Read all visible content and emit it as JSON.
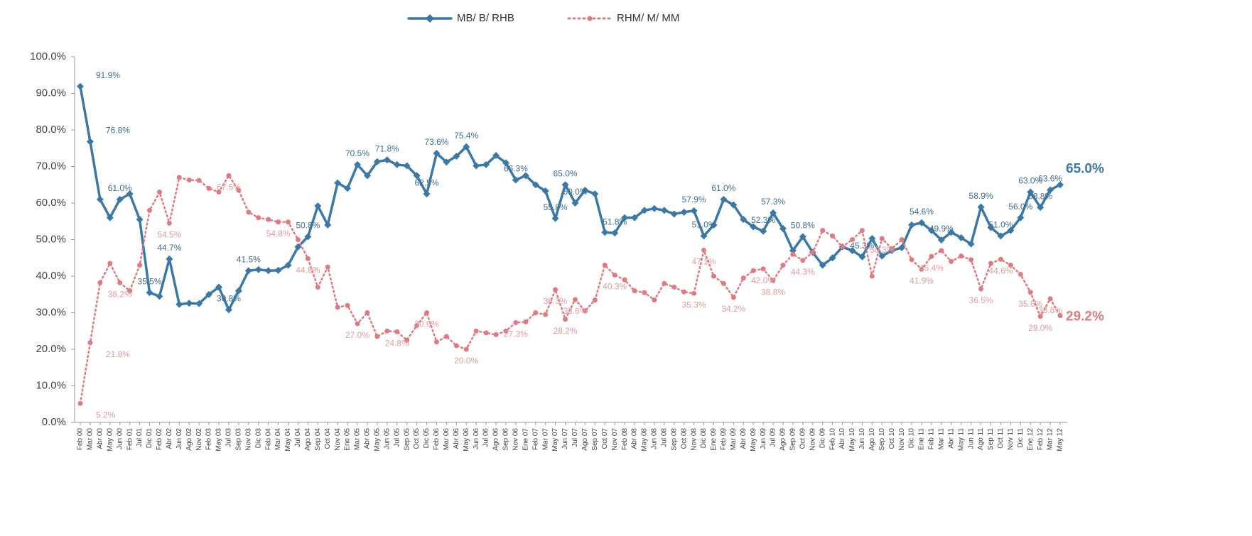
{
  "chart_data": {
    "type": "line",
    "legend": "top",
    "categories": [
      "Feb 00",
      "Mar 00",
      "Abr 00",
      "May 00",
      "Jun 00",
      "Feb 01",
      "Jul 01",
      "Dic 01",
      "Feb 02",
      "Abr 02",
      "Jun 02",
      "Ago 02",
      "Nov 02",
      "Feb 03",
      "May 03",
      "Jul 03",
      "Sep 03",
      "Nov 03",
      "Dic 03",
      "Feb 04",
      "Mar 04",
      "May 04",
      "Jul 04",
      "Ago 04",
      "Sep 04",
      "Oct 04",
      "Nov 04",
      "Ene 05",
      "Mar 05",
      "Abr 05",
      "May 05",
      "Jun 05",
      "Jul 05",
      "Sep 05",
      "Oct 05",
      "Dic 05",
      "Feb 06",
      "Mar 06",
      "Abr 06",
      "May 06",
      "Jun 06",
      "Jul 06",
      "Ago 06",
      "Sep 06",
      "Nov 06",
      "Ene 07",
      "Feb 07",
      "Mar 07",
      "May 07",
      "Jun 07",
      "Jul 07",
      "Ago 07",
      "Sep 07",
      "Oct 07",
      "Nov 07",
      "Feb 08",
      "Abr 08",
      "May 08",
      "Jun 08",
      "Jul 08",
      "Sep 08",
      "Oct 08",
      "Nov 08",
      "Dic 08",
      "Ene 09",
      "Feb 09",
      "Mar 09",
      "Abr 09",
      "May 09",
      "Jun 09",
      "Jul 09",
      "Ago 09",
      "Sep 09",
      "Oct 09",
      "Nov 09",
      "Dic 09",
      "Feb 10",
      "Abr 10",
      "May 10",
      "Jun 10",
      "Ago 10",
      "Sep 10",
      "Oct 10",
      "Nov 10",
      "Dic 10",
      "Ene 11",
      "Feb 11",
      "Mar 11",
      "Abr 11",
      "May 11",
      "Jun 11",
      "Ago 11",
      "Sep 11",
      "Oct 11",
      "Nov 11",
      "Dic 11",
      "Ene 12",
      "Feb 12",
      "Mar 12",
      "May 12"
    ],
    "series": [
      {
        "name": "MB/ B/ RHB",
        "color": "#3a78a8",
        "marker": "diamond",
        "dash": "solid",
        "values": [
          91.9,
          76.8,
          61.0,
          56.0,
          61.0,
          62.5,
          55.5,
          35.5,
          34.5,
          44.7,
          32.3,
          32.6,
          32.5,
          35,
          37,
          30.8,
          36,
          41.5,
          41.8,
          41.5,
          41.6,
          43,
          48,
          50.8,
          59.2,
          54,
          65.5,
          64,
          70.5,
          67.5,
          71.3,
          71.8,
          70.5,
          70.2,
          67.5,
          62.5,
          73.6,
          71.2,
          72.8,
          75.4,
          70.2,
          70.5,
          73,
          71,
          66.3,
          67.5,
          65,
          63.3,
          55.8,
          65.0,
          60.0,
          63.5,
          62.5,
          52,
          51.8,
          56,
          56,
          58,
          58.5,
          58,
          57,
          57.5,
          57.9,
          51.0,
          54,
          61.0,
          59.5,
          55.5,
          53.5,
          52.3,
          57.3,
          53,
          47,
          50.8,
          46.5,
          43,
          45,
          48,
          47,
          45.3,
          50.3,
          45.5,
          47,
          47.8,
          54,
          54.6,
          52.5,
          49.9,
          52,
          50.5,
          48.8,
          58.9,
          53.3,
          51.0,
          52.5,
          56.0,
          63.0,
          58.8,
          63.6,
          65.0
        ],
        "value_labels": [
          "91.9%",
          "76.8%",
          null,
          null,
          "61.0%",
          null,
          null,
          "35.5%",
          null,
          "44.7%",
          null,
          null,
          null,
          null,
          null,
          "30.8%",
          null,
          "41.5%",
          null,
          null,
          null,
          null,
          null,
          "50.8%",
          null,
          null,
          null,
          null,
          "70.5%",
          null,
          null,
          "71.8%",
          null,
          null,
          null,
          "62.5%",
          "73.6%",
          null,
          null,
          "75.4%",
          null,
          null,
          null,
          null,
          "66.3%",
          null,
          null,
          null,
          "55.8%",
          "65.0%",
          "60.0%",
          null,
          null,
          null,
          "51.8%",
          null,
          null,
          null,
          null,
          null,
          null,
          null,
          "57.9%",
          "51.0%",
          null,
          "61.0%",
          null,
          null,
          null,
          "52.3%",
          "57.3%",
          null,
          null,
          "50.8%",
          null,
          null,
          null,
          null,
          null,
          "45.3%",
          null,
          null,
          null,
          null,
          null,
          "54.6%",
          null,
          "49.9%",
          null,
          null,
          null,
          "58.9%",
          null,
          "51.0%",
          null,
          "56.0%",
          "63.0%",
          "58.8%",
          "63.6%",
          "65.0%"
        ]
      },
      {
        "name": "RHM/ M/ MM",
        "color": "#e07a80",
        "marker": "circle",
        "dash": "dotted",
        "values": [
          5.2,
          21.8,
          38.2,
          43.5,
          38.2,
          36,
          43,
          58,
          63,
          54.5,
          67,
          66.3,
          66.2,
          64,
          63,
          67.5,
          63.5,
          57.5,
          56,
          55.5,
          54.8,
          54.8,
          50,
          44.8,
          37,
          42.5,
          31.5,
          32,
          27.0,
          30,
          23.5,
          25,
          24.8,
          22.5,
          26.5,
          30.0,
          22,
          23.5,
          21,
          20.0,
          25,
          24.5,
          24,
          25,
          27.3,
          27.5,
          30,
          29.5,
          36.3,
          28.2,
          33.6,
          30.5,
          33.5,
          43,
          40.3,
          39,
          36,
          35.5,
          33.5,
          38,
          37,
          35.7,
          35.3,
          47.1,
          40,
          38,
          34.2,
          39.5,
          41.5,
          42.0,
          38.8,
          43,
          46,
          44.3,
          46.5,
          52.5,
          51,
          48,
          50,
          52.5,
          40,
          50.3,
          47.5,
          50,
          44.5,
          41.9,
          45.4,
          47,
          44,
          45.5,
          44.5,
          36.5,
          43.5,
          44.6,
          43,
          40.5,
          35.6,
          29.0,
          33.8,
          29.2
        ],
        "value_labels": [
          "5.2%",
          "21.8%",
          null,
          null,
          "38.2%",
          null,
          null,
          null,
          null,
          "54.5%",
          null,
          null,
          null,
          null,
          null,
          "67.5%",
          null,
          null,
          null,
          null,
          "54.8%",
          null,
          null,
          "44.8%",
          null,
          null,
          null,
          null,
          "27.0%",
          null,
          null,
          null,
          "24.8%",
          null,
          null,
          "30.0%",
          null,
          null,
          null,
          "20.0%",
          null,
          null,
          null,
          null,
          "27.3%",
          null,
          null,
          null,
          "36.3%",
          "28.2%",
          "33.6%",
          null,
          null,
          null,
          "40.3%",
          null,
          null,
          null,
          null,
          null,
          null,
          null,
          "35.3%",
          "47.1%",
          null,
          null,
          "34.2%",
          null,
          null,
          "42.0%",
          "38.8%",
          null,
          null,
          "44.3%",
          null,
          null,
          null,
          null,
          null,
          null,
          null,
          "50.3%",
          null,
          null,
          null,
          "41.9%",
          "45.4%",
          null,
          null,
          null,
          null,
          "36.5%",
          null,
          "44.6%",
          null,
          null,
          "35.6%",
          "29.0%",
          "33.8%",
          "29.2%"
        ]
      }
    ],
    "ylim": [
      0,
      100
    ],
    "yticks": [
      {
        "value": 0,
        "label": "0.0%"
      },
      {
        "value": 10,
        "label": "10.0%"
      },
      {
        "value": 20,
        "label": "20.0%"
      },
      {
        "value": 30,
        "label": "30.0%"
      },
      {
        "value": 40,
        "label": "40.0%"
      },
      {
        "value": 50,
        "label": "50.0%"
      },
      {
        "value": 60,
        "label": "60.0%"
      },
      {
        "value": 70,
        "label": "70.0%"
      },
      {
        "value": 80,
        "label": "80.0%"
      },
      {
        "value": 90,
        "label": "90.0%"
      },
      {
        "value": 100,
        "label": "100.0%"
      }
    ],
    "grid": false
  }
}
